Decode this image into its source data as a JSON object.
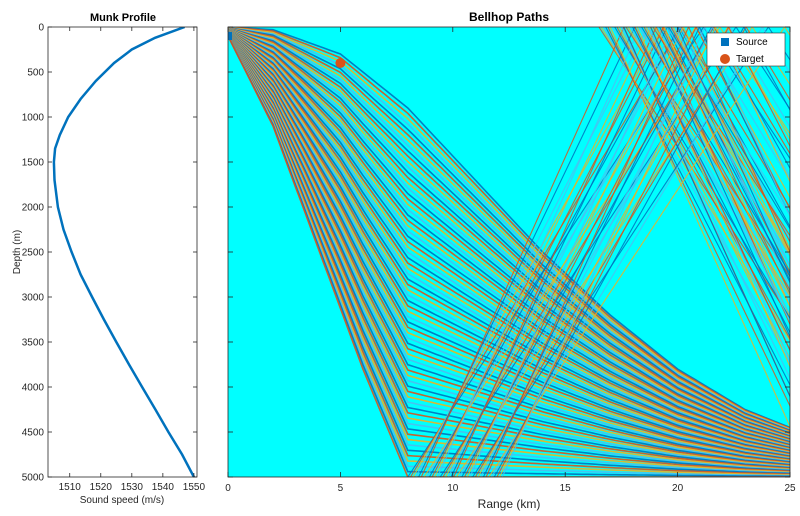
{
  "chart_data": [
    {
      "type": "line",
      "title": "Munk Profile",
      "xlabel": "Sound speed (m/s)",
      "ylabel": "Depth (m)",
      "xlim": [
        1503,
        1551
      ],
      "ylim": [
        5000,
        0
      ],
      "y_reversed": true,
      "xticks": [
        "1510",
        "1520",
        "1530",
        "1540",
        "1550"
      ],
      "yticks": [
        "0",
        "500",
        "1000",
        "1500",
        "2000",
        "2500",
        "3000",
        "3500",
        "4000",
        "4500",
        "5000"
      ],
      "grid": false,
      "color": "#0072BD",
      "series": [
        {
          "x": [
            1547.0,
            1537.5,
            1530.0,
            1524.3,
            1518.4,
            1513.5,
            1509.5,
            1506.8,
            1505.3,
            1504.9,
            1505.1,
            1506.2,
            1508.0,
            1510.6,
            1513.5,
            1517.2,
            1521.0,
            1525.0,
            1529.1,
            1533.3,
            1537.6,
            1541.8,
            1546.2,
            1550.0
          ],
          "y": [
            0,
            120,
            250,
            400,
            600,
            800,
            1000,
            1200,
            1350,
            1500,
            1700,
            2000,
            2250,
            2500,
            2750,
            3000,
            3250,
            3500,
            3750,
            4000,
            4250,
            4500,
            4750,
            5000
          ]
        }
      ]
    },
    {
      "type": "line",
      "title": "Bellhop Paths",
      "xlabel": "Range (km)",
      "ylabel": "",
      "xlim": [
        0,
        25
      ],
      "ylim": [
        5000,
        0
      ],
      "y_reversed": true,
      "xticks": [
        "0",
        "5",
        "10",
        "15",
        "20",
        "25"
      ],
      "background": "#00FFFF",
      "grid": false,
      "legend_position": "top-right",
      "series_colors": [
        "#0072BD",
        "#D95319",
        "#EDB120",
        "#4DBEEE"
      ],
      "ray_fan": {
        "source_range_km": 0,
        "source_depth_m": 100,
        "upper_envelope_x": [
          0,
          2,
          5,
          8,
          11,
          14,
          17,
          20,
          23,
          25
        ],
        "upper_envelope_y": [
          0,
          30,
          300,
          900,
          1700,
          2500,
          3200,
          3800,
          4250,
          4450
        ],
        "lower_envelope_x": [
          0,
          2,
          4,
          6,
          8
        ],
        "lower_envelope_y": [
          100,
          1100,
          2450,
          3800,
          5000
        ],
        "reflected_region_x_start_km": [
          8,
          16.5
        ]
      },
      "markers": [
        {
          "name": "Source",
          "x": 0,
          "y": 100,
          "shape": "square",
          "color": "#0072BD"
        },
        {
          "name": "Target",
          "x": 5,
          "y": 400,
          "shape": "circle",
          "color": "#D95319"
        }
      ]
    }
  ]
}
